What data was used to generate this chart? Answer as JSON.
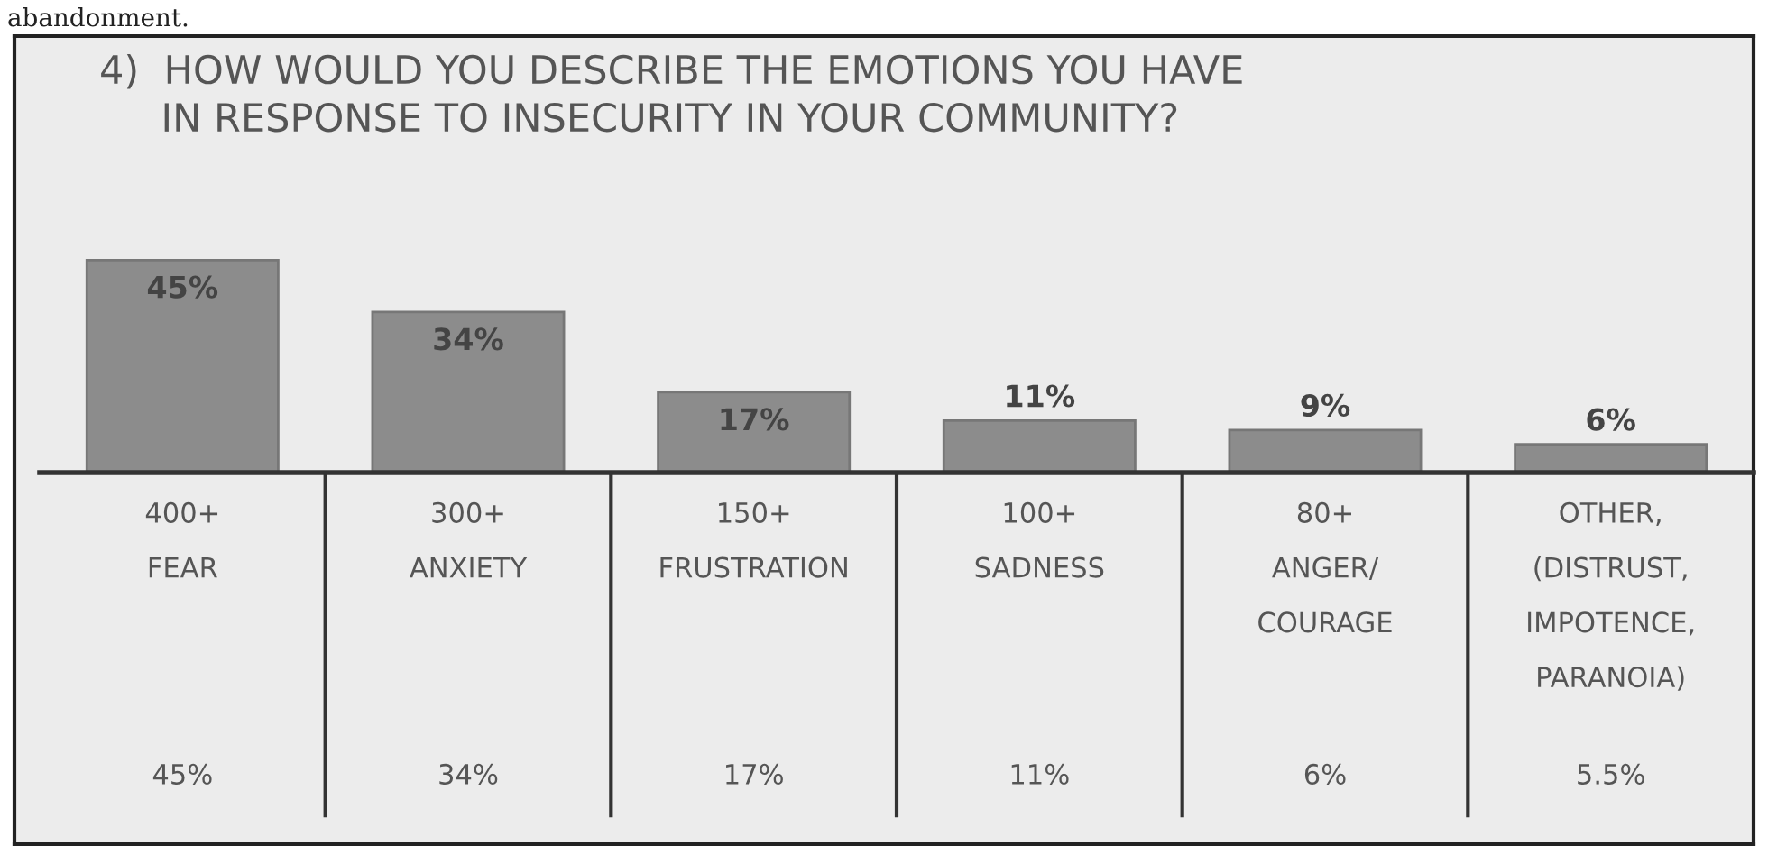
{
  "chart_data": {
    "type": "bar",
    "title": "4)  HOW WOULD YOU DESCRIBE THE EMOTIONS YOU HAVE\n     IN RESPONSE TO INSECURITY IN YOUR COMMUNITY?",
    "categories": [
      "400+\nFEAR\n45%",
      "300+\nANXIETY\n34%",
      "150+\nFRUSTRATION\n17%",
      "100+\nSADNESS\n11%",
      "80+\nANGER/\nCOURAGE\n6%",
      "OTHER,\n(DISTRUST,\nIMPOTENCE,\nPARANOIA)\n5.5%"
    ],
    "values": [
      45,
      34,
      17,
      11,
      9,
      6
    ],
    "value_labels": [
      "45%",
      "34%",
      "17%",
      "11%",
      "9%",
      "6%"
    ],
    "color": "#8c8c8c",
    "annotations": [
      "abandonment."
    ]
  }
}
